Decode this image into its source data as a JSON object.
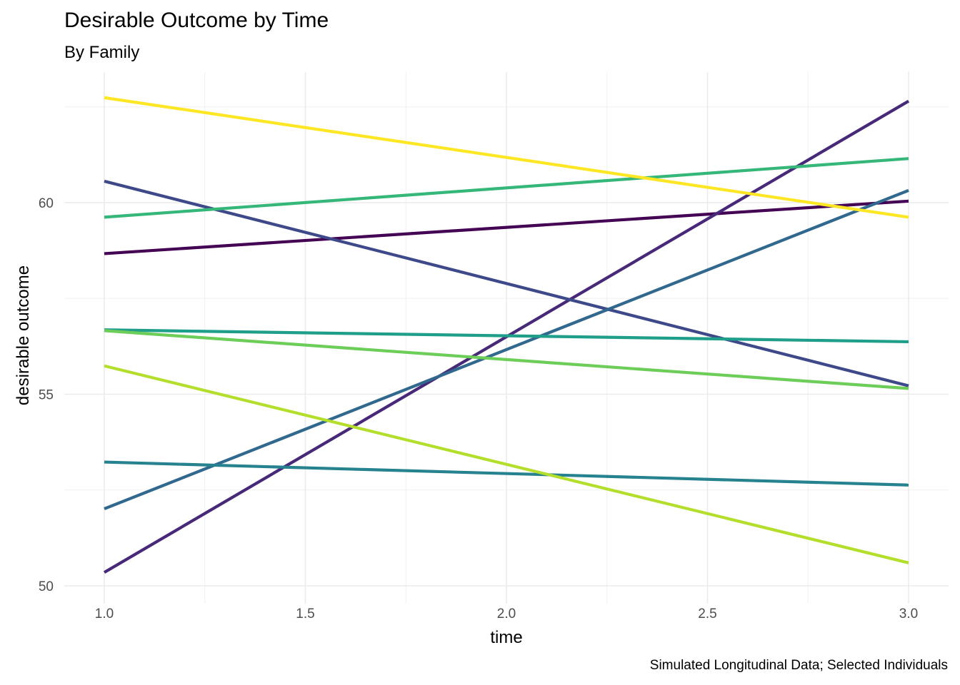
{
  "chart_data": {
    "type": "line",
    "title": "Desirable Outcome by Time",
    "subtitle": "By Family",
    "caption": "Simulated Longitudinal Data; Selected Individuals",
    "xlabel": "time",
    "ylabel": "desirable outcome",
    "xlim": [
      0.9,
      3.1
    ],
    "ylim": [
      49.5,
      63.3
    ],
    "x_ticks": [
      1.0,
      1.5,
      2.0,
      2.5,
      3.0
    ],
    "x_tick_labels": [
      "1.0",
      "1.5",
      "2.0",
      "2.5",
      "3.0"
    ],
    "y_ticks": [
      50,
      55,
      60
    ],
    "y_tick_labels": [
      "50",
      "55",
      "60"
    ],
    "grid": true,
    "legend": "none",
    "series": [
      {
        "color": "#440154",
        "x": [
          1.0,
          3.0
        ],
        "y": [
          58.67,
          60.04
        ]
      },
      {
        "color": "#482878",
        "x": [
          1.0,
          3.0
        ],
        "y": [
          50.35,
          62.65
        ]
      },
      {
        "color": "#3E4989",
        "x": [
          1.0,
          3.0
        ],
        "y": [
          60.56,
          55.22
        ]
      },
      {
        "color": "#31688E",
        "x": [
          1.0,
          3.0
        ],
        "y": [
          52.01,
          60.32
        ]
      },
      {
        "color": "#26828E",
        "x": [
          1.0,
          3.0
        ],
        "y": [
          53.23,
          52.63
        ]
      },
      {
        "color": "#1F9E89",
        "x": [
          1.0,
          3.0
        ],
        "y": [
          56.68,
          56.37
        ]
      },
      {
        "color": "#35B779",
        "x": [
          1.0,
          3.0
        ],
        "y": [
          59.62,
          61.15
        ]
      },
      {
        "color": "#6DCD59",
        "x": [
          1.0,
          3.0
        ],
        "y": [
          56.66,
          55.15
        ]
      },
      {
        "color": "#B4DE2C",
        "x": [
          1.0,
          3.0
        ],
        "y": [
          55.74,
          50.6
        ]
      },
      {
        "color": "#FDE725",
        "x": [
          1.0,
          3.0
        ],
        "y": [
          62.74,
          59.62
        ]
      }
    ]
  }
}
